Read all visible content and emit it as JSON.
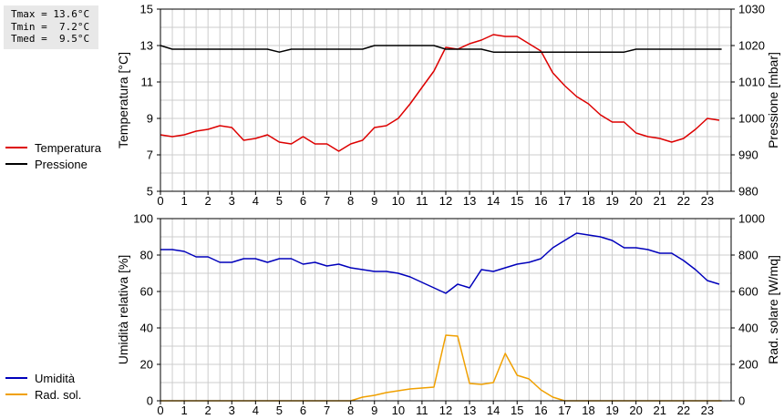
{
  "stats": {
    "tmax": "Tmax = 13.6°C",
    "tmin": "Tmin =  7.2°C",
    "tmed": "Tmed =  9.5°C"
  },
  "colors": {
    "temperature": "#dd0000",
    "pressure": "#000000",
    "humidity": "#0000bb",
    "radiation": "#f0a000",
    "grid": "#cccccc"
  },
  "chart_data": [
    {
      "type": "line",
      "x_ticks": [
        "0",
        "1",
        "2",
        "3",
        "4",
        "5",
        "6",
        "7",
        "8",
        "9",
        "10",
        "11",
        "12",
        "13",
        "14",
        "15",
        "16",
        "17",
        "18",
        "19",
        "20",
        "21",
        "22",
        "23"
      ],
      "xlim": [
        0,
        24
      ],
      "grid": true,
      "legend": [
        "Temperatura",
        "Pressione"
      ],
      "left_axis": {
        "label": "Temperatura [°C]",
        "lim": [
          5,
          15
        ],
        "ticks": [
          "5",
          "7",
          "9",
          "11",
          "13",
          "15"
        ]
      },
      "right_axis": {
        "label": "Pressione [mbar]",
        "lim": [
          980,
          1030
        ],
        "ticks": [
          "980",
          "990",
          "1000",
          "1010",
          "1020",
          "1030"
        ]
      },
      "series": [
        {
          "name": "Temperatura",
          "axis": "left",
          "color": "#dd0000",
          "points": [
            [
              0,
              8.1
            ],
            [
              0.5,
              8.0
            ],
            [
              1,
              8.1
            ],
            [
              1.5,
              8.3
            ],
            [
              2,
              8.4
            ],
            [
              2.5,
              8.6
            ],
            [
              3,
              8.5
            ],
            [
              3.5,
              7.8
            ],
            [
              4,
              7.9
            ],
            [
              4.5,
              8.1
            ],
            [
              5,
              7.7
            ],
            [
              5.5,
              7.6
            ],
            [
              6,
              8.0
            ],
            [
              6.5,
              7.6
            ],
            [
              7,
              7.6
            ],
            [
              7.5,
              7.2
            ],
            [
              8,
              7.6
            ],
            [
              8.5,
              7.8
            ],
            [
              9,
              8.5
            ],
            [
              9.5,
              8.6
            ],
            [
              10,
              9.0
            ],
            [
              10.5,
              9.8
            ],
            [
              11,
              10.7
            ],
            [
              11.5,
              11.6
            ],
            [
              12,
              12.9
            ],
            [
              12.5,
              12.8
            ],
            [
              13,
              13.1
            ],
            [
              13.5,
              13.3
            ],
            [
              14,
              13.6
            ],
            [
              14.5,
              13.5
            ],
            [
              15,
              13.5
            ],
            [
              15.5,
              13.1
            ],
            [
              16,
              12.7
            ],
            [
              16.5,
              11.5
            ],
            [
              17,
              10.8
            ],
            [
              17.5,
              10.2
            ],
            [
              18,
              9.8
            ],
            [
              18.5,
              9.2
            ],
            [
              19,
              8.8
            ],
            [
              19.5,
              8.8
            ],
            [
              20,
              8.2
            ],
            [
              20.5,
              8.0
            ],
            [
              21,
              7.9
            ],
            [
              21.5,
              7.7
            ],
            [
              22,
              7.9
            ],
            [
              22.5,
              8.4
            ],
            [
              23,
              9.0
            ],
            [
              23.5,
              8.9
            ]
          ]
        },
        {
          "name": "Pressione",
          "axis": "right",
          "color": "#000000",
          "points": [
            [
              0,
              1020
            ],
            [
              0.5,
              1019
            ],
            [
              4.5,
              1019
            ],
            [
              5,
              1018.2
            ],
            [
              5.5,
              1019
            ],
            [
              8.5,
              1019
            ],
            [
              9,
              1020
            ],
            [
              11.5,
              1020
            ],
            [
              12,
              1019
            ],
            [
              13.5,
              1019
            ],
            [
              14,
              1018.2
            ],
            [
              19.5,
              1018.2
            ],
            [
              20,
              1019
            ],
            [
              23.6,
              1019
            ]
          ]
        }
      ]
    },
    {
      "type": "line",
      "x_ticks": [
        "0",
        "1",
        "2",
        "3",
        "4",
        "5",
        "6",
        "7",
        "8",
        "9",
        "10",
        "11",
        "12",
        "13",
        "14",
        "15",
        "16",
        "17",
        "18",
        "19",
        "20",
        "21",
        "22",
        "23"
      ],
      "xlim": [
        0,
        24
      ],
      "grid": true,
      "legend": [
        "Umidità",
        "Rad. sol."
      ],
      "left_axis": {
        "label": "Umidità relativa [%]",
        "lim": [
          0,
          100
        ],
        "ticks": [
          "0",
          "20",
          "40",
          "60",
          "80",
          "100"
        ]
      },
      "right_axis": {
        "label": "Rad. solare [W/mq]",
        "lim": [
          0,
          1000
        ],
        "ticks": [
          "0",
          "200",
          "400",
          "600",
          "800",
          "1000"
        ]
      },
      "series": [
        {
          "name": "Umidità",
          "axis": "left",
          "color": "#0000bb",
          "points": [
            [
              0,
              83
            ],
            [
              0.5,
              83
            ],
            [
              1,
              82
            ],
            [
              1.5,
              79
            ],
            [
              2,
              79
            ],
            [
              2.5,
              76
            ],
            [
              3,
              76
            ],
            [
              3.5,
              78
            ],
            [
              4,
              78
            ],
            [
              4.5,
              76
            ],
            [
              5,
              78
            ],
            [
              5.5,
              78
            ],
            [
              6,
              75
            ],
            [
              6.5,
              76
            ],
            [
              7,
              74
            ],
            [
              7.5,
              75
            ],
            [
              8,
              73
            ],
            [
              8.5,
              72
            ],
            [
              9,
              71
            ],
            [
              9.5,
              71
            ],
            [
              10,
              70
            ],
            [
              10.5,
              68
            ],
            [
              11,
              65
            ],
            [
              11.5,
              62
            ],
            [
              12,
              59
            ],
            [
              12.5,
              64
            ],
            [
              13,
              62
            ],
            [
              13.5,
              72
            ],
            [
              14,
              71
            ],
            [
              14.5,
              73
            ],
            [
              15,
              75
            ],
            [
              15.5,
              76
            ],
            [
              16,
              78
            ],
            [
              16.5,
              84
            ],
            [
              17,
              88
            ],
            [
              17.5,
              92
            ],
            [
              18,
              91
            ],
            [
              18.5,
              90
            ],
            [
              19,
              88
            ],
            [
              19.5,
              84
            ],
            [
              20,
              84
            ],
            [
              20.5,
              83
            ],
            [
              21,
              81
            ],
            [
              21.5,
              81
            ],
            [
              22,
              77
            ],
            [
              22.5,
              72
            ],
            [
              23,
              66
            ],
            [
              23.5,
              64
            ]
          ]
        },
        {
          "name": "Rad. sol.",
          "axis": "right",
          "color": "#f0a000",
          "points": [
            [
              0,
              0
            ],
            [
              8,
              0
            ],
            [
              8.5,
              20
            ],
            [
              9,
              30
            ],
            [
              9.5,
              45
            ],
            [
              10,
              55
            ],
            [
              10.5,
              65
            ],
            [
              11,
              70
            ],
            [
              11.5,
              75
            ],
            [
              12,
              360
            ],
            [
              12.5,
              355
            ],
            [
              13,
              95
            ],
            [
              13.5,
              90
            ],
            [
              14,
              100
            ],
            [
              14.5,
              260
            ],
            [
              15,
              140
            ],
            [
              15.5,
              120
            ],
            [
              16,
              60
            ],
            [
              16.5,
              20
            ],
            [
              17,
              0
            ],
            [
              23.6,
              0
            ]
          ]
        }
      ]
    }
  ]
}
